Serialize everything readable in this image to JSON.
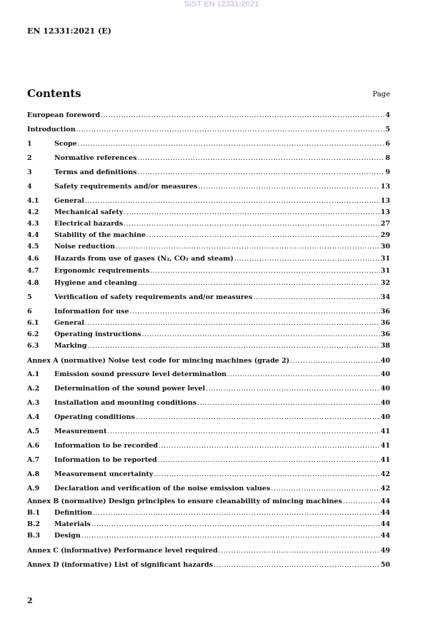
{
  "watermark": "SIST EN 12331:2021",
  "header": "EN 12331:2021 (E)",
  "contents_title": "Contents",
  "page_label": "Page",
  "entries": [
    {
      "num": "",
      "title": "European foreword",
      "page": "4"
    },
    {
      "num": "",
      "title": "Introduction",
      "page": "5"
    },
    {
      "num": "1",
      "title": "Scope",
      "page": "6"
    },
    {
      "num": "2",
      "title": "Normative references",
      "page": "8"
    },
    {
      "num": "3",
      "title": "Terms and definitions",
      "page": "9"
    },
    {
      "num": "4",
      "title": "Safety requirements and/or measures",
      "page": "13"
    },
    {
      "num": "4.1",
      "title": "General",
      "page": "13"
    },
    {
      "num": "4.2",
      "title": "Mechanical safety",
      "page": "13"
    },
    {
      "num": "4.3",
      "title": "Electrical hazards",
      "page": "27"
    },
    {
      "num": "4.4",
      "title": "Stability of the machine",
      "page": "29"
    },
    {
      "num": "4.5",
      "title": "Noise reduction",
      "page": "30"
    },
    {
      "num": "4.6",
      "title": "Hazards from use of gases (N₂, CO₂ and steam)",
      "page": "31"
    },
    {
      "num": "4.7",
      "title": "Ergonomic requirements",
      "page": "31"
    },
    {
      "num": "4.8",
      "title": "Hygiene and cleaning",
      "page": "32"
    },
    {
      "num": "5",
      "title": "Verification of safety requirements and/or measures",
      "page": "34"
    },
    {
      "num": "6",
      "title": "Information for use",
      "page": "36"
    },
    {
      "num": "6.1",
      "title": "General",
      "page": "36"
    },
    {
      "num": "6.2",
      "title": "Operating instructions",
      "page": "36"
    },
    {
      "num": "6.3",
      "title": "Marking",
      "page": "38"
    },
    {
      "num": "",
      "title": "Annex A (normative)  Noise test code for mincing machines (grade 2)",
      "page": "40"
    },
    {
      "num": "A.1",
      "title": "Emission sound pressure level determination",
      "page": "40"
    },
    {
      "num": "A.2",
      "title": "Determination of the sound power level",
      "page": "40"
    },
    {
      "num": "A.3",
      "title": "Installation and mounting conditions",
      "page": "40"
    },
    {
      "num": "A.4",
      "title": "Operating conditions",
      "page": "40"
    },
    {
      "num": "A.5",
      "title": "Measurement",
      "page": "41"
    },
    {
      "num": "A.6",
      "title": "Information to be recorded",
      "page": "41"
    },
    {
      "num": "A.7",
      "title": "Information to be reported",
      "page": "41"
    },
    {
      "num": "A.8",
      "title": "Measurement uncertainty",
      "page": "42"
    },
    {
      "num": "A.9",
      "title": "Declaration and verification of the noise emission values",
      "page": "42"
    },
    {
      "num": "",
      "title": "Annex B (normative)  Design principles to ensure cleanability of mincing machines",
      "page": "44"
    },
    {
      "num": "B.1",
      "title": "Definition",
      "page": "44"
    },
    {
      "num": "B.2",
      "title": "Materials",
      "page": "44"
    },
    {
      "num": "B.3",
      "title": "Design",
      "page": "44"
    },
    {
      "num": "",
      "title": "Annex C (informative)  Performance level required",
      "page": "49"
    },
    {
      "num": "",
      "title": "Annex D (informative)  List of significant hazards",
      "page": "50"
    }
  ],
  "page_number": "2"
}
